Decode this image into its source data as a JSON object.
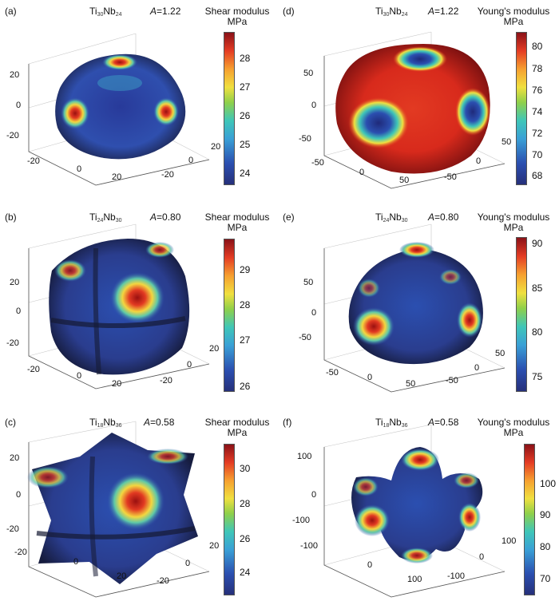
{
  "panels": [
    {
      "id": "a",
      "label": "(a)",
      "composition": {
        "ti": "Ti",
        "ti_sub": "30",
        "nb": "Nb",
        "nb_sub": "24"
      },
      "anisotropy": "=1.22",
      "a_symbol": "A",
      "colorbar": {
        "title_line1": "Shear modulus",
        "title_line2": "MPa",
        "ticks": [
          "28",
          "27",
          "26",
          "25",
          "24"
        ]
      },
      "z_ticks": [
        "20",
        "0",
        "-20"
      ],
      "x_ticks": [
        "-20",
        "0",
        "20"
      ],
      "y_ticks": [
        "20",
        "0",
        "-20"
      ]
    },
    {
      "id": "d",
      "label": "(d)",
      "composition": {
        "ti": "Ti",
        "ti_sub": "30",
        "nb": "Nb",
        "nb_sub": "24"
      },
      "anisotropy": "=1.22",
      "a_symbol": "A",
      "colorbar": {
        "title_line1": "Young's modulus",
        "title_line2": "MPa",
        "ticks": [
          "80",
          "78",
          "76",
          "74",
          "72",
          "70",
          "68"
        ]
      },
      "z_ticks": [
        "50",
        "0",
        "-50"
      ],
      "x_ticks": [
        "-50",
        "0",
        "50"
      ],
      "y_ticks": [
        "50",
        "0",
        "-50"
      ]
    },
    {
      "id": "b",
      "label": "(b)",
      "composition": {
        "ti": "Ti",
        "ti_sub": "24",
        "nb": "Nb",
        "nb_sub": "30"
      },
      "anisotropy": "=0.80",
      "a_symbol": "A",
      "colorbar": {
        "title_line1": "Shear modulus",
        "title_line2": "MPa",
        "ticks": [
          "29",
          "28",
          "27",
          "26"
        ]
      },
      "z_ticks": [
        "20",
        "0",
        "-20"
      ],
      "x_ticks": [
        "-20",
        "0",
        "20"
      ],
      "y_ticks": [
        "20",
        "0",
        "-20"
      ]
    },
    {
      "id": "e",
      "label": "(e)",
      "composition": {
        "ti": "Ti",
        "ti_sub": "24",
        "nb": "Nb",
        "nb_sub": "30"
      },
      "anisotropy": "=0.80",
      "a_symbol": "A",
      "colorbar": {
        "title_line1": "Young's modulus",
        "title_line2": "MPa",
        "ticks": [
          "90",
          "85",
          "80",
          "75"
        ]
      },
      "z_ticks": [
        "50",
        "0",
        "-50"
      ],
      "x_ticks": [
        "-50",
        "0",
        "50"
      ],
      "y_ticks": [
        "50",
        "0",
        "-50"
      ]
    },
    {
      "id": "c",
      "label": "(c)",
      "composition": {
        "ti": "Ti",
        "ti_sub": "18",
        "nb": "Nb",
        "nb_sub": "36"
      },
      "anisotropy": "=0.58",
      "a_symbol": "A",
      "colorbar": {
        "title_line1": "Shear modulus",
        "title_line2": "MPa",
        "ticks": [
          "30",
          "28",
          "26",
          "24"
        ]
      },
      "z_ticks": [
        "20",
        "0",
        "-20"
      ],
      "x_ticks": [
        "-20",
        "0",
        "20"
      ],
      "y_ticks": [
        "20",
        "0",
        "-20"
      ]
    },
    {
      "id": "f",
      "label": "(f)",
      "composition": {
        "ti": "Ti",
        "ti_sub": "18",
        "nb": "Nb",
        "nb_sub": "36"
      },
      "anisotropy": "=0.58",
      "a_symbol": "A",
      "colorbar": {
        "title_line1": "Young's modulus",
        "title_line2": "MPa",
        "ticks": [
          "100",
          "90",
          "80",
          "70"
        ]
      },
      "z_ticks": [
        "100",
        "0",
        "-100"
      ],
      "x_ticks": [
        "-100",
        "0",
        "100"
      ],
      "y_ticks": [
        "100",
        "0",
        "-100"
      ]
    }
  ]
}
